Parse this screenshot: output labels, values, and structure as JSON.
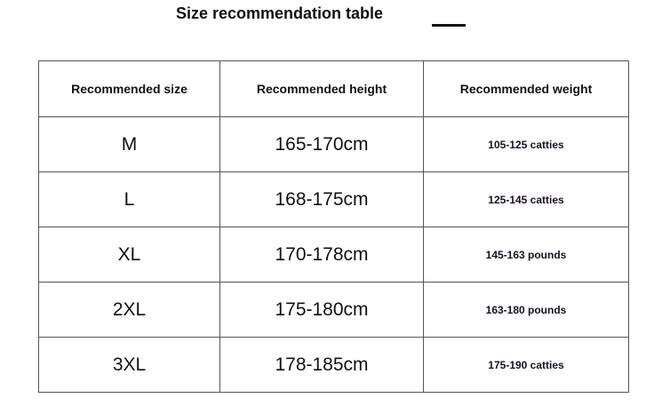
{
  "title": "Size recommendation table",
  "headers": [
    "Recommended size",
    "Recommended height",
    "Recommended weight"
  ],
  "rows": [
    [
      "M",
      "165-170cm",
      "105-125 catties"
    ],
    [
      "L",
      "168-175cm",
      "125-145 catties"
    ],
    [
      "XL",
      "170-178cm",
      "145-163 pounds"
    ],
    [
      "2XL",
      "175-180cm",
      "163-180 pounds"
    ],
    [
      "3XL",
      "178-185cm",
      "175-190 catties"
    ]
  ]
}
